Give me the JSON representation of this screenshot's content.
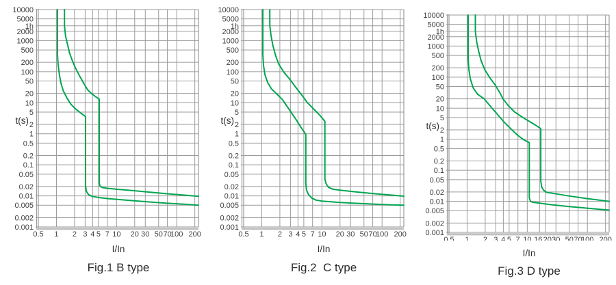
{
  "figure": {
    "background": "#ffffff"
  },
  "colors": {
    "curve": "#00A551",
    "grid": "#9A9A9A",
    "axis_band": "#C2C2C2",
    "text": "#3C3C3C"
  },
  "chart_data": [
    {
      "type": "line",
      "title": "Fig.1 B type",
      "xlabel": "I/In",
      "ylabel": "t(s)",
      "x_scale": "log",
      "y_scale": "log",
      "xlim": [
        0.5,
        230
      ],
      "ylim": [
        0.001,
        10000
      ],
      "grid": true,
      "legend": false,
      "y_ticks": [
        {
          "label": "10000",
          "value": 10000
        },
        {
          "label": "5000",
          "value": 5000
        },
        {
          "label": "1h",
          "value": 3600,
          "plot_value": 3000
        },
        {
          "label": "2000",
          "value": 2000
        },
        {
          "label": "1000",
          "value": 1000
        },
        {
          "label": "500",
          "value": 500
        },
        {
          "label": "200",
          "value": 200
        },
        {
          "label": "100",
          "value": 100
        },
        {
          "label": "50",
          "value": 50
        },
        {
          "label": "20",
          "value": 20
        },
        {
          "label": "10",
          "value": 10
        },
        {
          "label": "5",
          "value": 5
        },
        {
          "label": "2",
          "value": 2
        },
        {
          "label": "1",
          "value": 1
        },
        {
          "label": "0.5",
          "value": 0.5
        },
        {
          "label": "0.2",
          "value": 0.2
        },
        {
          "label": "0.1",
          "value": 0.1
        },
        {
          "label": "0.05",
          "value": 0.05
        },
        {
          "label": "0.02",
          "value": 0.02
        },
        {
          "label": "0.01",
          "value": 0.01
        },
        {
          "label": "0.005",
          "value": 0.005
        },
        {
          "label": "0.002",
          "value": 0.002
        },
        {
          "label": "0.001",
          "value": 0.001
        }
      ],
      "x_ticks": [
        {
          "label": "0.5",
          "value": 0.5
        },
        {
          "label": "1",
          "value": 1
        },
        {
          "label": "2",
          "value": 2
        },
        {
          "label": "3",
          "value": 3
        },
        {
          "label": "4",
          "value": 4
        },
        {
          "label": "5",
          "value": 5
        },
        {
          "label": "7",
          "value": 7
        },
        {
          "label": "10",
          "value": 10
        },
        {
          "label": "20",
          "value": 20
        },
        {
          "label": "30",
          "value": 30
        },
        {
          "label": "50",
          "value": 50
        },
        {
          "label": "70",
          "value": 70
        },
        {
          "label": "100",
          "value": 100
        },
        {
          "label": "200",
          "value": 200
        }
      ],
      "series": [
        {
          "name": "upper-trip-limit",
          "points": [
            [
              1.36,
              10000
            ],
            [
              1.36,
              3000
            ],
            [
              1.42,
              1400
            ],
            [
              1.52,
              800
            ],
            [
              1.65,
              400
            ],
            [
              1.85,
              220
            ],
            [
              2.08,
              130
            ],
            [
              2.45,
              70
            ],
            [
              2.85,
              42
            ],
            [
              3.3,
              26
            ],
            [
              3.9,
              19
            ],
            [
              4.5,
              15.5
            ],
            [
              5.15,
              13
            ],
            [
              5.15,
              0.026
            ],
            [
              5.3,
              0.0205
            ],
            [
              5.8,
              0.0185
            ],
            [
              7,
              0.0175
            ],
            [
              10,
              0.0163
            ],
            [
              18,
              0.0148
            ],
            [
              35,
              0.0132
            ],
            [
              70,
              0.0117
            ],
            [
              140,
              0.0105
            ],
            [
              230,
              0.0097
            ]
          ]
        },
        {
          "name": "lower-trip-limit",
          "points": [
            [
              1.04,
              10000
            ],
            [
              1.04,
              350
            ],
            [
              1.07,
              160
            ],
            [
              1.12,
              80
            ],
            [
              1.19,
              42
            ],
            [
              1.3,
              24
            ],
            [
              1.5,
              14
            ],
            [
              1.75,
              8.8
            ],
            [
              2.1,
              6.2
            ],
            [
              2.55,
              4.6
            ],
            [
              3.05,
              3.6
            ],
            [
              3.05,
              0.021
            ],
            [
              3.15,
              0.014
            ],
            [
              3.4,
              0.011
            ],
            [
              3.9,
              0.0097
            ],
            [
              4.8,
              0.009
            ],
            [
              7,
              0.0082
            ],
            [
              12,
              0.0075
            ],
            [
              25,
              0.0067
            ],
            [
              60,
              0.0059
            ],
            [
              130,
              0.0054
            ],
            [
              230,
              0.005
            ]
          ]
        }
      ]
    },
    {
      "type": "line",
      "title": "Fig.2  C type",
      "xlabel": "I/In",
      "ylabel": "t(s)",
      "x_scale": "log",
      "y_scale": "log",
      "xlim": [
        0.5,
        230
      ],
      "ylim": [
        0.001,
        10000
      ],
      "grid": true,
      "legend": false,
      "y_ticks": [
        {
          "label": "10000",
          "value": 10000
        },
        {
          "label": "5000",
          "value": 5000
        },
        {
          "label": "1h",
          "value": 3600,
          "plot_value": 3000
        },
        {
          "label": "2000",
          "value": 2000
        },
        {
          "label": "1000",
          "value": 1000
        },
        {
          "label": "500",
          "value": 500
        },
        {
          "label": "200",
          "value": 200
        },
        {
          "label": "100",
          "value": 100
        },
        {
          "label": "50",
          "value": 50
        },
        {
          "label": "20",
          "value": 20
        },
        {
          "label": "10",
          "value": 10
        },
        {
          "label": "5",
          "value": 5
        },
        {
          "label": "2",
          "value": 2
        },
        {
          "label": "1",
          "value": 1
        },
        {
          "label": "0.5",
          "value": 0.5
        },
        {
          "label": "0.2",
          "value": 0.2
        },
        {
          "label": "0.1",
          "value": 0.1
        },
        {
          "label": "0.05",
          "value": 0.05
        },
        {
          "label": "0.02",
          "value": 0.02
        },
        {
          "label": "0.01",
          "value": 0.01
        },
        {
          "label": "0.005",
          "value": 0.005
        },
        {
          "label": "0.002",
          "value": 0.002
        },
        {
          "label": "0.001",
          "value": 0.001
        }
      ],
      "x_ticks": [
        {
          "label": "0.5",
          "value": 0.5
        },
        {
          "label": "1",
          "value": 1
        },
        {
          "label": "2",
          "value": 2
        },
        {
          "label": "3",
          "value": 3
        },
        {
          "label": "4",
          "value": 4
        },
        {
          "label": "5",
          "value": 5
        },
        {
          "label": "7",
          "value": 7
        },
        {
          "label": "10",
          "value": 10
        },
        {
          "label": "20",
          "value": 20
        },
        {
          "label": "30",
          "value": 30
        },
        {
          "label": "50",
          "value": 50
        },
        {
          "label": "70",
          "value": 70
        },
        {
          "label": "100",
          "value": 100
        },
        {
          "label": "200",
          "value": 200
        }
      ],
      "series": [
        {
          "name": "upper-trip-limit",
          "points": [
            [
              1.36,
              10000
            ],
            [
              1.36,
              3000
            ],
            [
              1.43,
              1400
            ],
            [
              1.53,
              700
            ],
            [
              1.68,
              350
            ],
            [
              1.9,
              180
            ],
            [
              2.3,
              100
            ],
            [
              2.9,
              58
            ],
            [
              3.6,
              33
            ],
            [
              4.6,
              18
            ],
            [
              5.7,
              10.2
            ],
            [
              7.4,
              6.1
            ],
            [
              9.4,
              3.8
            ],
            [
              11.2,
              2.5
            ],
            [
              11.2,
              0.035
            ],
            [
              11.7,
              0.025
            ],
            [
              12.8,
              0.019
            ],
            [
              15,
              0.0165
            ],
            [
              20,
              0.0152
            ],
            [
              40,
              0.0132
            ],
            [
              80,
              0.0116
            ],
            [
              150,
              0.0105
            ],
            [
              230,
              0.0098
            ]
          ]
        },
        {
          "name": "lower-trip-limit",
          "points": [
            [
              1.04,
              10000
            ],
            [
              1.04,
              350
            ],
            [
              1.07,
              160
            ],
            [
              1.13,
              80
            ],
            [
              1.25,
              45
            ],
            [
              1.45,
              28
            ],
            [
              1.78,
              19
            ],
            [
              2.2,
              12.7
            ],
            [
              2.85,
              6.1
            ],
            [
              3.7,
              2.9
            ],
            [
              4.5,
              1.6
            ],
            [
              5.4,
              0.95
            ],
            [
              5.4,
              0.025
            ],
            [
              5.55,
              0.015
            ],
            [
              6,
              0.011
            ],
            [
              6.8,
              0.0085
            ],
            [
              8,
              0.0073
            ],
            [
              10,
              0.0068
            ],
            [
              20,
              0.0061
            ],
            [
              50,
              0.0056
            ],
            [
              120,
              0.0052
            ],
            [
              230,
              0.005
            ]
          ]
        }
      ]
    },
    {
      "type": "line",
      "title": "Fig.3 D type",
      "xlabel": "I/In",
      "ylabel": "t(s)",
      "x_scale": "log",
      "y_scale": "log",
      "xlim": [
        0.5,
        230
      ],
      "ylim": [
        0.001,
        10000
      ],
      "grid": true,
      "legend": false,
      "y_ticks": [
        {
          "label": "10000",
          "value": 10000
        },
        {
          "label": "5000",
          "value": 5000
        },
        {
          "label": "1h",
          "value": 3600,
          "plot_value": 3000
        },
        {
          "label": "2000",
          "value": 2000
        },
        {
          "label": "1000",
          "value": 1000
        },
        {
          "label": "500",
          "value": 500
        },
        {
          "label": "200",
          "value": 200
        },
        {
          "label": "100",
          "value": 100
        },
        {
          "label": "50",
          "value": 50
        },
        {
          "label": "20",
          "value": 20
        },
        {
          "label": "10",
          "value": 10
        },
        {
          "label": "5",
          "value": 5
        },
        {
          "label": "2",
          "value": 2
        },
        {
          "label": "1",
          "value": 1
        },
        {
          "label": "0.5",
          "value": 0.5
        },
        {
          "label": "0.2",
          "value": 0.2
        },
        {
          "label": "0.1",
          "value": 0.1
        },
        {
          "label": "0.05",
          "value": 0.05
        },
        {
          "label": "0.02",
          "value": 0.02
        },
        {
          "label": "0.01",
          "value": 0.01
        },
        {
          "label": "0.005",
          "value": 0.005
        },
        {
          "label": "0.002",
          "value": 0.002
        },
        {
          "label": "0.001",
          "value": 0.001
        }
      ],
      "x_ticks": [
        {
          "label": "0.5",
          "value": 0.5
        },
        {
          "label": "1",
          "value": 1
        },
        {
          "label": "2",
          "value": 2
        },
        {
          "label": "3",
          "value": 3
        },
        {
          "label": "4",
          "value": 4
        },
        {
          "label": "5",
          "value": 5
        },
        {
          "label": "7",
          "value": 7
        },
        {
          "label": "10",
          "value": 10
        },
        {
          "label": "16",
          "value": 16,
          "label_dx": -2
        },
        {
          "label": "20",
          "value": 20,
          "label_dx": 3
        },
        {
          "label": "30",
          "value": 30
        },
        {
          "label": "50",
          "value": 50
        },
        {
          "label": "70",
          "value": 70
        },
        {
          "label": "100",
          "value": 100
        },
        {
          "label": "200",
          "value": 200
        }
      ],
      "series": [
        {
          "name": "upper-trip-limit",
          "points": [
            [
              1.37,
              10000
            ],
            [
              1.37,
              3000
            ],
            [
              1.44,
              1400
            ],
            [
              1.55,
              700
            ],
            [
              1.7,
              350
            ],
            [
              1.95,
              180
            ],
            [
              2.35,
              100
            ],
            [
              2.95,
              55
            ],
            [
              3.55,
              30
            ],
            [
              3.95,
              20
            ],
            [
              4.85,
              12
            ],
            [
              6.2,
              7.5
            ],
            [
              8.9,
              4.7
            ],
            [
              11.5,
              3.5
            ],
            [
              13.9,
              2.8
            ],
            [
              16.8,
              2.2
            ],
            [
              16.8,
              0.045
            ],
            [
              17.4,
              0.029
            ],
            [
              18.6,
              0.023
            ],
            [
              21,
              0.0195
            ],
            [
              28,
              0.0178
            ],
            [
              50,
              0.0148
            ],
            [
              100,
              0.0122
            ],
            [
              230,
              0.01
            ]
          ]
        },
        {
          "name": "lower-trip-limit",
          "points": [
            [
              1.04,
              10000
            ],
            [
              1.04,
              400
            ],
            [
              1.07,
              180
            ],
            [
              1.13,
              90
            ],
            [
              1.26,
              45
            ],
            [
              1.5,
              28
            ],
            [
              1.92,
              20
            ],
            [
              2.57,
              10.2
            ],
            [
              3.2,
              6.3
            ],
            [
              4.05,
              3.7
            ],
            [
              5.3,
              2.2
            ],
            [
              6.85,
              1.36
            ],
            [
              8.8,
              0.95
            ],
            [
              10.8,
              0.78
            ],
            [
              10.8,
              0.013
            ],
            [
              11.3,
              0.01
            ],
            [
              12.5,
              0.0093
            ],
            [
              16,
              0.0087
            ],
            [
              25,
              0.0078
            ],
            [
              50,
              0.0068
            ],
            [
              100,
              0.006
            ],
            [
              230,
              0.0052
            ]
          ]
        }
      ]
    }
  ]
}
